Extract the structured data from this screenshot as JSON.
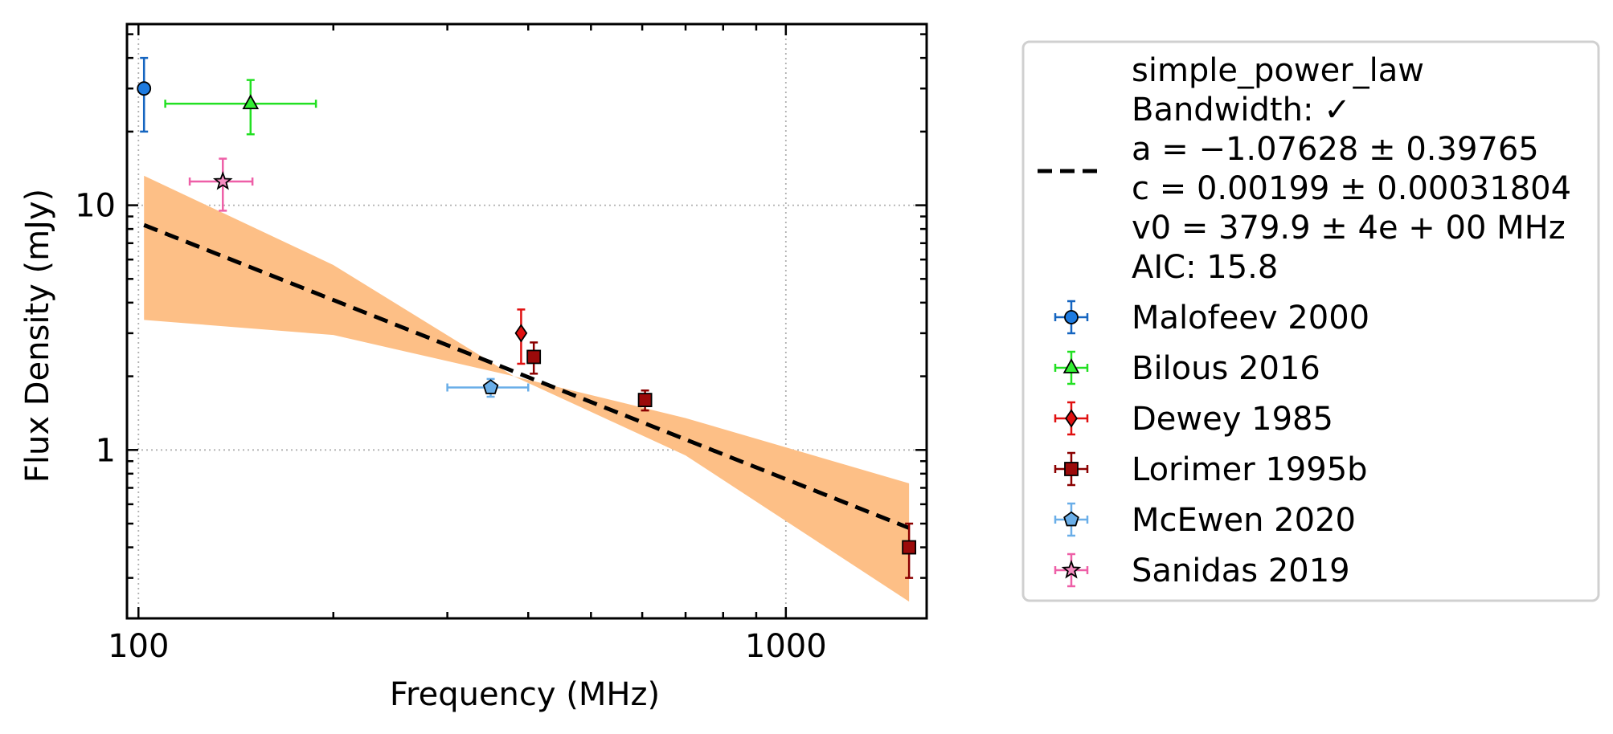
{
  "chart_data": {
    "type": "scatter",
    "xlabel": "Frequency (MHz)",
    "ylabel": "Flux Density (mJy)",
    "xscale": "log",
    "yscale": "log",
    "xlim": [
      96,
      1650
    ],
    "ylim": [
      0.205,
      55
    ],
    "xticks": [
      {
        "value": 100,
        "label": "100"
      },
      {
        "value": 1000,
        "label": "1000"
      }
    ],
    "yticks": [
      {
        "value": 1,
        "label": "1"
      },
      {
        "value": 10,
        "label": "10"
      }
    ],
    "grid": true,
    "legend_placement": "outside-right",
    "fit": {
      "name": "simple_power_law",
      "label_lines": [
        "simple_power_law",
        "Bandwidth: ✓",
        "a = −1.07628 ± 0.39765",
        "c = 0.00199 ± 0.00031804",
        "v0 = 379.9 ± 4e + 00 MHz",
        "AIC: 15.8"
      ],
      "line_color": "#000000",
      "band_color": "#fdbf86",
      "line": [
        [
          102,
          8.3
        ],
        [
          1550,
          0.48
        ]
      ],
      "band": [
        {
          "x": 102,
          "lo": 3.4,
          "hi": 13.2
        },
        {
          "x": 200,
          "lo": 2.95,
          "hi": 5.7
        },
        {
          "x": 380,
          "lo": 2.0,
          "hi": 2.0
        },
        {
          "x": 700,
          "lo": 0.95,
          "hi": 1.35
        },
        {
          "x": 1550,
          "lo": 0.24,
          "hi": 0.73
        }
      ]
    },
    "series": [
      {
        "name": "Malofeev 2000",
        "marker": "circle",
        "color": "#1565c0",
        "face": "#1e7be0",
        "points": [
          {
            "x": 102,
            "y": 30,
            "yerr_lo": 20,
            "yerr_hi": 40
          }
        ]
      },
      {
        "name": "Bilous 2016",
        "marker": "triangle",
        "color": "#22e022",
        "face": "#33ee33",
        "points": [
          {
            "x": 149,
            "y": 26,
            "xerr_lo": 110,
            "xerr_hi": 188,
            "yerr_lo": 19.5,
            "yerr_hi": 32.5
          }
        ]
      },
      {
        "name": "Dewey 1985",
        "marker": "diamond",
        "color": "#e01010",
        "face": "#e01010",
        "points": [
          {
            "x": 390,
            "y": 3.0,
            "yerr_lo": 2.25,
            "yerr_hi": 3.75
          }
        ]
      },
      {
        "name": "Lorimer 1995b",
        "marker": "square",
        "color": "#8b0000",
        "face": "#9b0a0a",
        "points": [
          {
            "x": 408,
            "y": 2.4,
            "yerr_lo": 2.05,
            "yerr_hi": 2.75
          },
          {
            "x": 606,
            "y": 1.6,
            "yerr_lo": 1.45,
            "yerr_hi": 1.75
          },
          {
            "x": 1550,
            "y": 0.4,
            "yerr_lo": 0.3,
            "yerr_hi": 0.5
          }
        ]
      },
      {
        "name": "McEwen 2020",
        "marker": "pentagon",
        "color": "#6aaee8",
        "face": "#6aaee8",
        "points": [
          {
            "x": 350,
            "y": 1.8,
            "xerr_lo": 300,
            "xerr_hi": 400,
            "yerr_lo": 1.65,
            "yerr_hi": 1.95
          }
        ]
      },
      {
        "name": "Sanidas 2019",
        "marker": "star",
        "color": "#ee5fa7",
        "face": "#f48cc0",
        "points": [
          {
            "x": 135,
            "y": 12.5,
            "xerr_lo": 120,
            "xerr_hi": 150,
            "yerr_lo": 9.5,
            "yerr_hi": 15.5
          }
        ]
      }
    ]
  }
}
